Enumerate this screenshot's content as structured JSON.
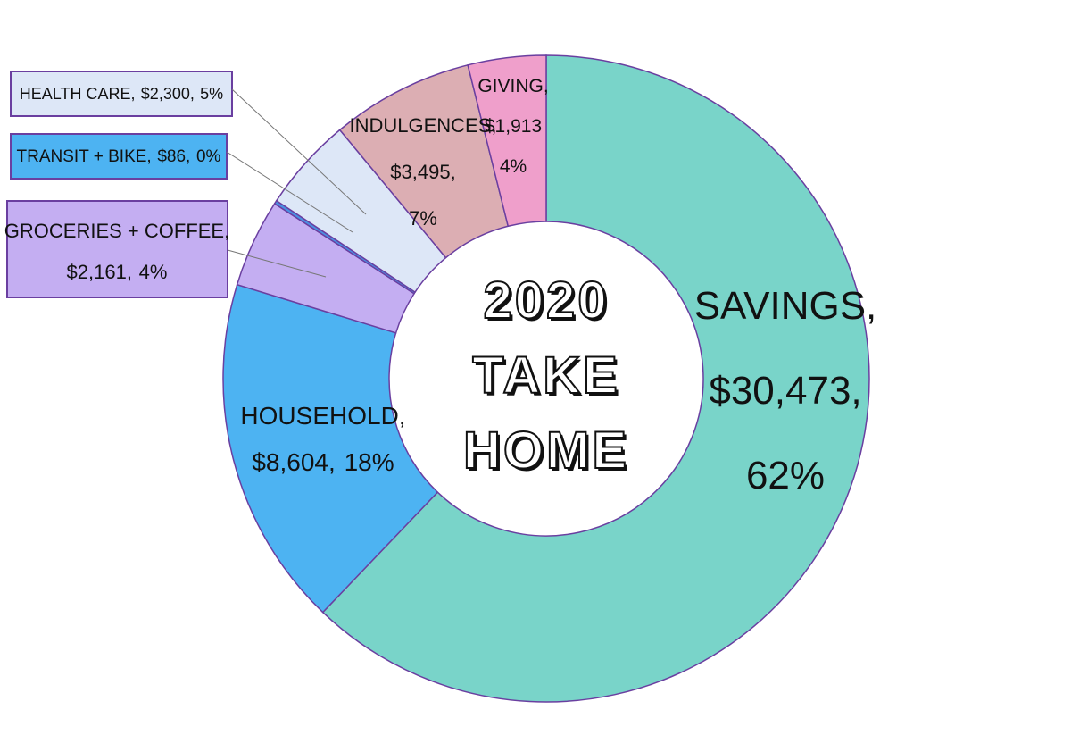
{
  "chart_data": {
    "type": "donut",
    "title": "2020 TAKE HOME",
    "categories": [
      "SAVINGS,",
      "HOUSEHOLD,",
      "GROCERIES + COFFEE,",
      "TRANSIT + BIKE,",
      "HEALTH CARE,",
      "INDULGENCES,",
      "GIVING,"
    ],
    "values": [
      30473,
      8604,
      2161,
      86,
      2300,
      3495,
      1913
    ],
    "value_labels": [
      "$30,473,",
      "$8,604,",
      "$2,161,",
      "$86,",
      "$2,300,",
      "$3,495,",
      "$1,913"
    ],
    "percent_labels": [
      "62%",
      "18%",
      "4%",
      "0%",
      "5%",
      "7%",
      "4%"
    ],
    "colors": [
      "#79d4c9",
      "#4db3f2",
      "#c4aef2",
      "#4a90e2",
      "#dde7f7",
      "#dcaeb3",
      "#ef9fcb"
    ]
  }
}
